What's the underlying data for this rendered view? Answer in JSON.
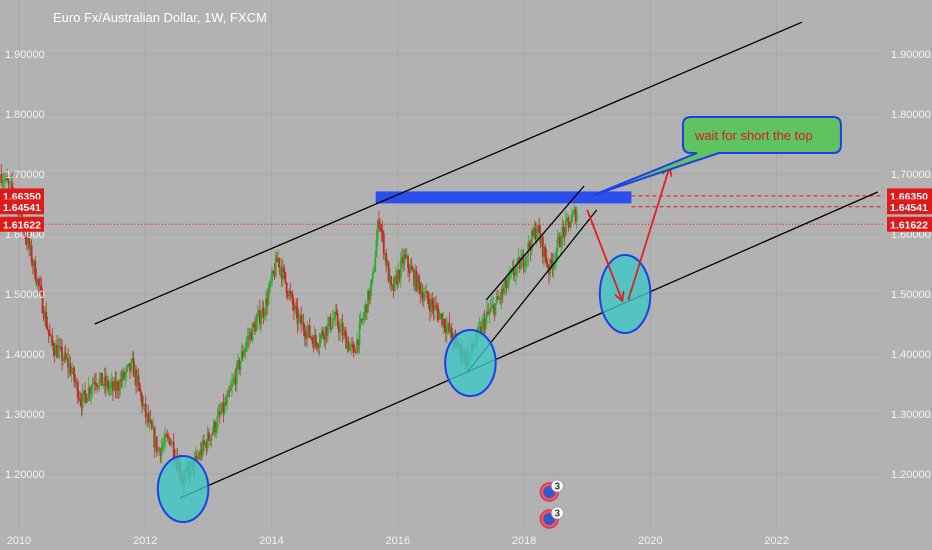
{
  "header": {
    "title": "Euro Fx/Australian Dollar, 1W, FXCM"
  },
  "chart_data": {
    "type": "candlestick",
    "title": "Euro Fx/Australian Dollar, 1W, FXCM",
    "symbol": "EURAUD",
    "timeframe": "1W",
    "x_range": [
      2009.7,
      2023.7
    ],
    "ylim": [
      1.11,
      1.99
    ],
    "x_ticks": [
      "2010",
      "2012",
      "2014",
      "2016",
      "2018",
      "2020",
      "2022"
    ],
    "x_tick_values": [
      2010,
      2012,
      2014,
      2016,
      2018,
      2020,
      2022
    ],
    "y_ticks": [
      "1.20000",
      "1.30000",
      "1.40000",
      "1.50000",
      "1.60000",
      "1.70000",
      "1.80000",
      "1.90000"
    ],
    "y_tick_values": [
      1.2,
      1.3,
      1.4,
      1.5,
      1.6,
      1.7,
      1.8,
      1.9
    ],
    "price_tags": [
      {
        "label": "1.66350",
        "value": 1.6635
      },
      {
        "label": "1.64541",
        "value": 1.64541
      },
      {
        "label": "1.61622",
        "value": 1.61622
      }
    ],
    "price_path": [
      {
        "x": 2009.72,
        "y": 1.7
      },
      {
        "x": 2009.95,
        "y": 1.66
      },
      {
        "x": 2010.1,
        "y": 1.6
      },
      {
        "x": 2010.3,
        "y": 1.52
      },
      {
        "x": 2010.5,
        "y": 1.42
      },
      {
        "x": 2010.8,
        "y": 1.38
      },
      {
        "x": 2011.0,
        "y": 1.32
      },
      {
        "x": 2011.2,
        "y": 1.36
      },
      {
        "x": 2011.5,
        "y": 1.34
      },
      {
        "x": 2011.8,
        "y": 1.38
      },
      {
        "x": 2012.0,
        "y": 1.3
      },
      {
        "x": 2012.2,
        "y": 1.24
      },
      {
        "x": 2012.4,
        "y": 1.26
      },
      {
        "x": 2012.6,
        "y": 1.19
      },
      {
        "x": 2012.8,
        "y": 1.22
      },
      {
        "x": 2013.0,
        "y": 1.26
      },
      {
        "x": 2013.3,
        "y": 1.32
      },
      {
        "x": 2013.6,
        "y": 1.42
      },
      {
        "x": 2013.9,
        "y": 1.48
      },
      {
        "x": 2014.1,
        "y": 1.56
      },
      {
        "x": 2014.4,
        "y": 1.46
      },
      {
        "x": 2014.7,
        "y": 1.42
      },
      {
        "x": 2015.0,
        "y": 1.46
      },
      {
        "x": 2015.3,
        "y": 1.4
      },
      {
        "x": 2015.6,
        "y": 1.52
      },
      {
        "x": 2015.7,
        "y": 1.63
      },
      {
        "x": 2015.9,
        "y": 1.5
      },
      {
        "x": 2016.1,
        "y": 1.56
      },
      {
        "x": 2016.4,
        "y": 1.5
      },
      {
        "x": 2016.7,
        "y": 1.46
      },
      {
        "x": 2016.9,
        "y": 1.42
      },
      {
        "x": 2017.1,
        "y": 1.39
      },
      {
        "x": 2017.4,
        "y": 1.46
      },
      {
        "x": 2017.6,
        "y": 1.49
      },
      {
        "x": 2017.8,
        "y": 1.53
      },
      {
        "x": 2018.0,
        "y": 1.56
      },
      {
        "x": 2018.2,
        "y": 1.61
      },
      {
        "x": 2018.4,
        "y": 1.54
      },
      {
        "x": 2018.6,
        "y": 1.6
      },
      {
        "x": 2018.85,
        "y": 1.64
      }
    ],
    "annotations": {
      "upper_channel": {
        "from": {
          "x": 2011.2,
          "y": 1.45
        },
        "to": {
          "x": 2022.4,
          "y": 1.953
        }
      },
      "lower_channel": {
        "from": {
          "x": 2012.55,
          "y": 1.16
        },
        "to": {
          "x": 2023.6,
          "y": 1.67
        }
      },
      "upper_wedge": {
        "from": {
          "x": 2017.4,
          "y": 1.49
        },
        "to": {
          "x": 2018.95,
          "y": 1.68
        }
      },
      "lower_wedge": {
        "from": {
          "x": 2017.1,
          "y": 1.37
        },
        "to": {
          "x": 2019.15,
          "y": 1.64
        }
      },
      "resistance_zone": {
        "x0": 2015.65,
        "x1": 2019.7,
        "y0": 1.651,
        "y1": 1.671
      },
      "target_circle": {
        "x": 2019.6,
        "y": 1.5,
        "rx": 0.4,
        "ry": 0.065
      },
      "pivot_circles": [
        {
          "x": 2012.6,
          "y": 1.175,
          "rx": 0.4,
          "ry": 0.055
        },
        {
          "x": 2017.15,
          "y": 1.385,
          "rx": 0.4,
          "ry": 0.055
        }
      ],
      "arrows": [
        {
          "from": {
            "x": 2019.0,
            "y": 1.64
          },
          "to": {
            "x": 2019.55,
            "y": 1.49
          }
        },
        {
          "from": {
            "x": 2019.65,
            "y": 1.49
          },
          "to": {
            "x": 2020.3,
            "y": 1.71
          }
        }
      ],
      "callout": {
        "text": "wait for short the top",
        "x": 2020.5,
        "y": 1.74
      }
    },
    "event_badges": [
      {
        "label": "3",
        "x": 2018.4,
        "y": 1.17
      },
      {
        "label": "3",
        "x": 2018.4,
        "y": 1.125
      }
    ],
    "grid": true,
    "colors": {
      "background": "#b2b2b2",
      "up_candle": "#2eaa2e",
      "down_candle": "#c62828",
      "trendline": "#000000",
      "resistance": "#2146f0",
      "circle_fill": "#3fc7c7",
      "circle_stroke": "#1f3fe6",
      "arrow": "#e02020",
      "price_tag": "#e01a1a",
      "callout_fill": "#5fc35f",
      "callout_stroke": "#1f3fe6"
    }
  }
}
